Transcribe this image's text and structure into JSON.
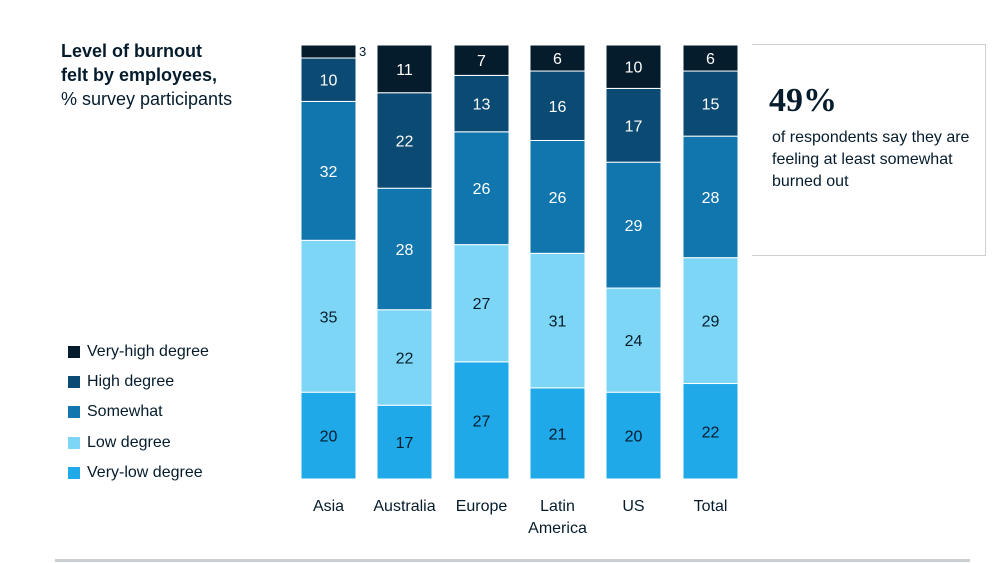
{
  "chart_data": {
    "type": "bar",
    "stacked": true,
    "title": "Level of burnout felt by employees,",
    "subtitle": "% survey participants",
    "categories": [
      "Asia",
      "Australia",
      "Europe",
      "Latin America",
      "US",
      "Total"
    ],
    "category_lines": [
      [
        "Asia"
      ],
      [
        "Australia"
      ],
      [
        "Europe"
      ],
      [
        "Latin",
        "America"
      ],
      [
        "US"
      ],
      [
        "Total"
      ]
    ],
    "series": [
      {
        "name": "Very-low degree",
        "color": "#1fa9e8",
        "label_color": "#051c2c",
        "values": [
          20,
          17,
          27,
          21,
          20,
          22
        ]
      },
      {
        "name": "Low degree",
        "color": "#7dd6f5",
        "label_color": "#051c2c",
        "values": [
          35,
          22,
          27,
          31,
          24,
          29
        ]
      },
      {
        "name": "Somewhat",
        "color": "#1176ad",
        "label_color": "#ffffff",
        "values": [
          32,
          28,
          26,
          26,
          29,
          28
        ]
      },
      {
        "name": "High degree",
        "color": "#0b4a73",
        "label_color": "#ffffff",
        "values": [
          10,
          22,
          13,
          16,
          17,
          15
        ]
      },
      {
        "name": "Very-high degree",
        "color": "#051c2c",
        "label_color": "#ffffff",
        "values": [
          3,
          11,
          7,
          6,
          10,
          6
        ]
      }
    ],
    "ylim": [
      0,
      100
    ],
    "grid": false,
    "legend_position": "left",
    "legend_order": [
      "Very-high degree",
      "High degree",
      "Somewhat",
      "Low degree",
      "Very-low degree"
    ]
  },
  "title": {
    "line1": "Level of burnout",
    "line2": "felt by employees,",
    "line3": "% survey participants"
  },
  "legend": [
    {
      "label": "Very-high degree",
      "color": "#051c2c"
    },
    {
      "label": "High degree",
      "color": "#0b4a73"
    },
    {
      "label": "Somewhat",
      "color": "#1176ad"
    },
    {
      "label": "Low degree",
      "color": "#7dd6f5"
    },
    {
      "label": "Very-low degree",
      "color": "#1fa9e8"
    }
  ],
  "callout": {
    "value": "49%",
    "text": "of respondents say they are feeling at least somewhat burned out"
  }
}
